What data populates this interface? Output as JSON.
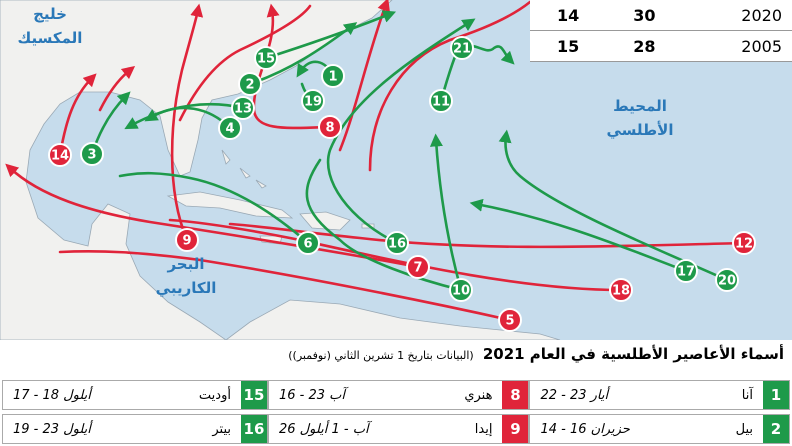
{
  "map": {
    "labels": [
      {
        "lines": [
          "خليج",
          "المكسيك"
        ]
      },
      {
        "lines": [
          "المحيط",
          "الأطلسي"
        ]
      },
      {
        "lines": [
          "البحر",
          "الكاريبي"
        ]
      }
    ],
    "storms": [
      {
        "number": 1,
        "color": "#1e9a4a"
      },
      {
        "number": 2,
        "color": "#1e9a4a"
      },
      {
        "number": 3,
        "color": "#1e9a4a"
      },
      {
        "number": 4,
        "color": "#1e9a4a"
      },
      {
        "number": 5,
        "color": "#e0243a"
      },
      {
        "number": 6,
        "color": "#1e9a4a"
      },
      {
        "number": 7,
        "color": "#e0243a"
      },
      {
        "number": 8,
        "color": "#e0243a"
      },
      {
        "number": 9,
        "color": "#e0243a"
      },
      {
        "number": 10,
        "color": "#1e9a4a"
      },
      {
        "number": 11,
        "color": "#1e9a4a"
      },
      {
        "number": 12,
        "color": "#e0243a"
      },
      {
        "number": 13,
        "color": "#1e9a4a"
      },
      {
        "number": 14,
        "color": "#e0243a"
      },
      {
        "number": 15,
        "color": "#1e9a4a"
      },
      {
        "number": 16,
        "color": "#1e9a4a"
      },
      {
        "number": 17,
        "color": "#1e9a4a"
      },
      {
        "number": 18,
        "color": "#e0243a"
      },
      {
        "number": 19,
        "color": "#1e9a4a"
      },
      {
        "number": 20,
        "color": "#1e9a4a"
      },
      {
        "number": 21,
        "color": "#1e9a4a"
      }
    ]
  },
  "stats_table": {
    "rows": [
      [
        2020,
        30,
        14
      ],
      [
        2005,
        28,
        15
      ]
    ]
  },
  "title": "أسماء الأعاصير الأطلسية في العام 2021",
  "subtitle": "(البيانات بتاريخ 1 تشرين الثاني (نوفمبر))",
  "storm_table": {
    "rows": [
      [
        {
          "number": 1,
          "name": "آنا",
          "dates": "22 - 23 أيار",
          "color": "#1e9a4a"
        },
        {
          "number": 8,
          "name": "هنري",
          "dates": "16 - 23 آب",
          "color": "#e0243a"
        },
        {
          "number": 15,
          "name": "أوديت",
          "dates": "17 - 18 أيلول",
          "color": "#1e9a4a"
        }
      ],
      [
        {
          "number": 2,
          "name": "بيل",
          "dates": "14 - 16 حزيران",
          "color": "#1e9a4a"
        },
        {
          "number": 9,
          "name": "إيدا",
          "dates": "26 آب - 1 أيلول",
          "color": "#e0243a"
        },
        {
          "number": 16,
          "name": "بيتر",
          "dates": "19 - 23 أيلول",
          "color": "#1e9a4a"
        }
      ]
    ]
  }
}
